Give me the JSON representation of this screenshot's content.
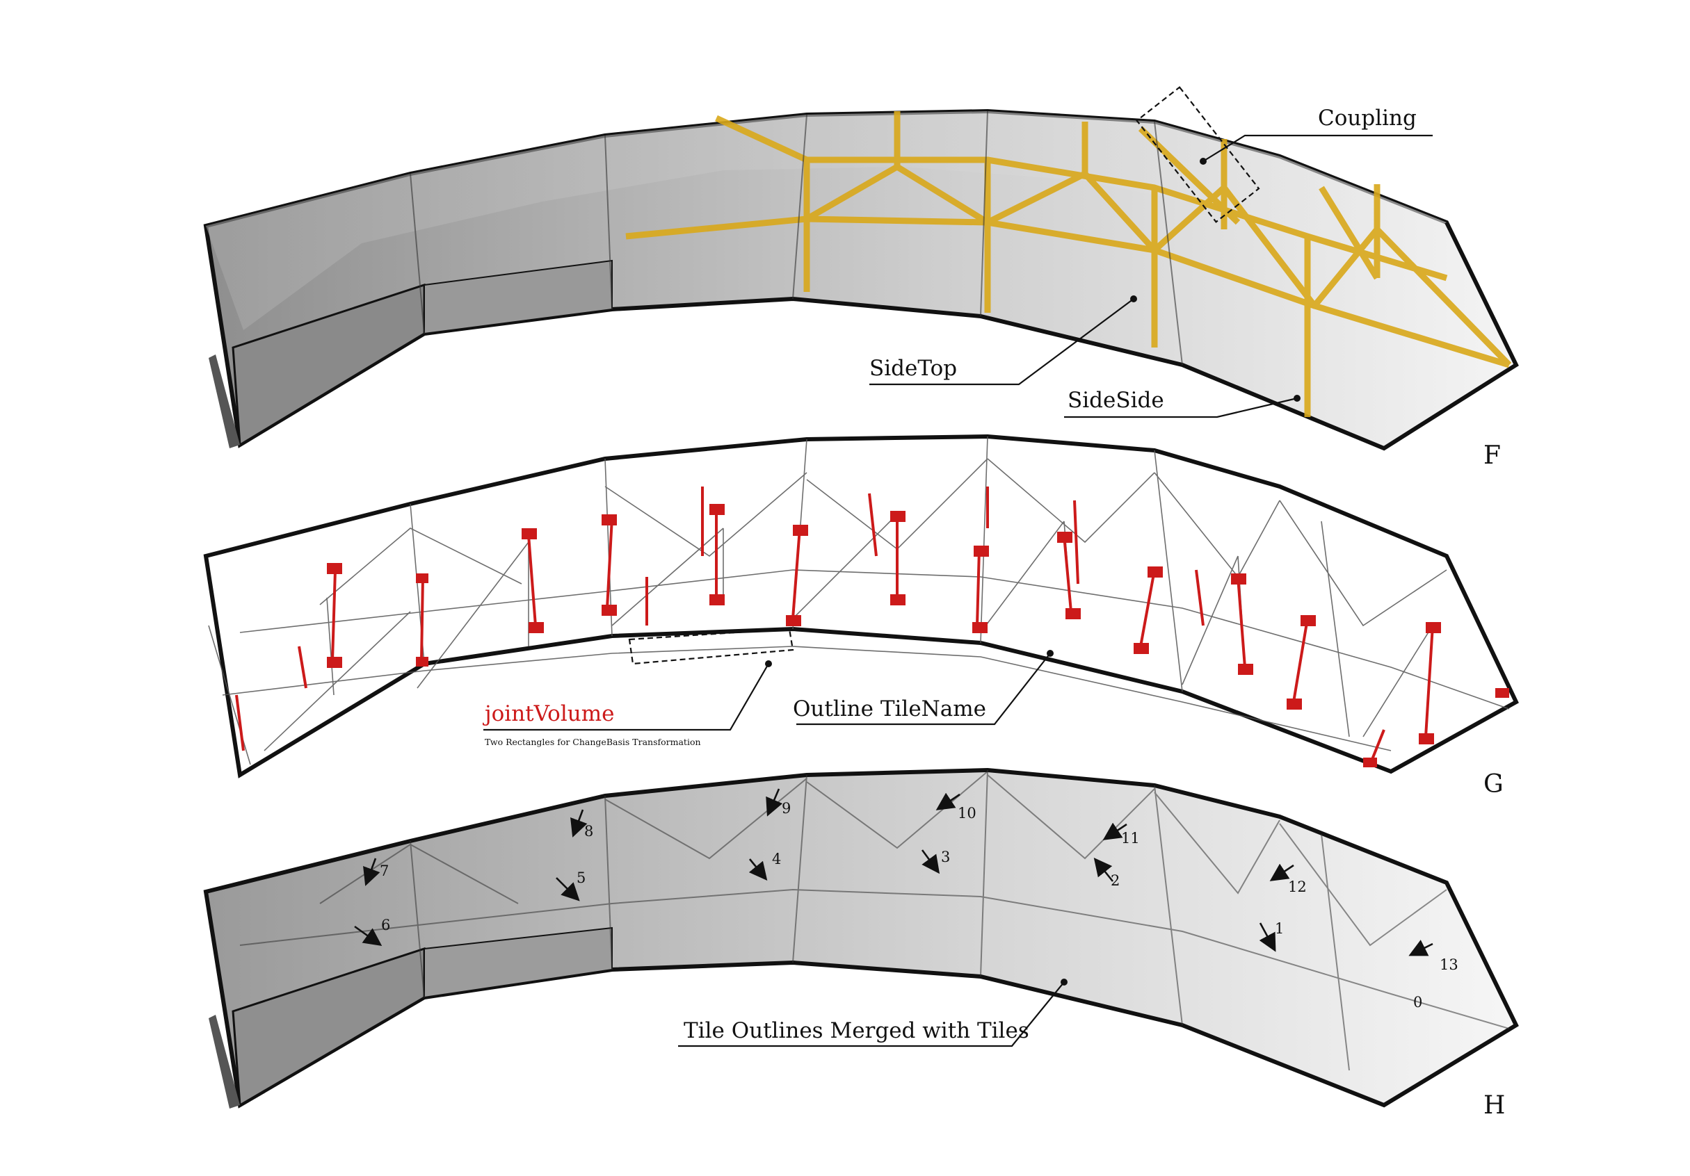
{
  "panels": [
    {
      "letter": "F"
    },
    {
      "letter": "G"
    },
    {
      "letter": "H"
    }
  ],
  "callouts": {
    "coupling": "Coupling",
    "side_top": "SideTop",
    "side_side": "SideSide",
    "outline_tile_name": "Outline TileName",
    "joint_volume": "jointVolume",
    "joint_volume_note": "Two Rectangles for ChangeBasis Transformation",
    "tile_outlines_merged": "Tile Outlines Merged with Tiles"
  },
  "tile_numbers": [
    "7",
    "8",
    "9",
    "10",
    "11",
    "12",
    "13",
    "6",
    "5",
    "4",
    "3",
    "2",
    "1",
    "0"
  ],
  "colors": {
    "ink": "#111111",
    "frame_gold": "#d9a81a",
    "joint_red": "#cc1a1a",
    "tile_gray": "#9a9a9a"
  }
}
